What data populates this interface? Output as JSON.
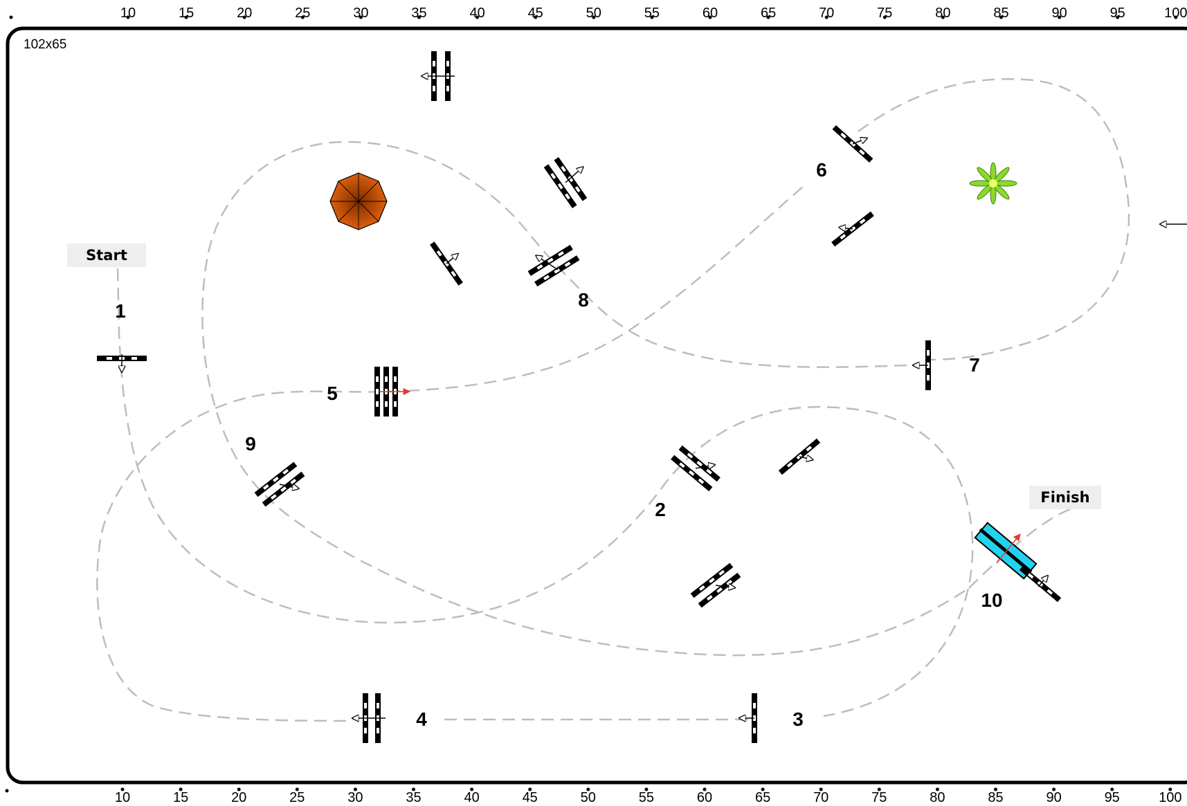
{
  "arena": {
    "size_label": "102x65",
    "ruler_top": [
      "10",
      "15",
      "20",
      "25",
      "30",
      "35",
      "40",
      "45",
      "50",
      "55",
      "60",
      "65",
      "70",
      "75",
      "80",
      "85",
      "90",
      "95",
      "100"
    ],
    "ruler_bottom": [
      "10",
      "15",
      "20",
      "25",
      "30",
      "35",
      "40",
      "45",
      "50",
      "55",
      "60",
      "65",
      "70",
      "75",
      "80",
      "85",
      "90",
      "95",
      "100"
    ]
  },
  "labels": {
    "start": "Start",
    "finish": "Finish"
  },
  "course_numbers": [
    "1",
    "2",
    "3",
    "4",
    "5",
    "6",
    "7",
    "8",
    "9",
    "10"
  ],
  "colors": {
    "border": "#000000",
    "path": "#bdbdbd",
    "label_bg": "#eeeeee",
    "water": "#22d3ee",
    "umbrella": "#e0600c",
    "plant": "#8bd92a",
    "arrow_red": "#e53935"
  },
  "obstacles": [
    "start-pole",
    "single-pole",
    "wing-vertical",
    "triple-bar",
    "pole-pair",
    "decor-umbrella",
    "decor-plant",
    "water-jump"
  ]
}
